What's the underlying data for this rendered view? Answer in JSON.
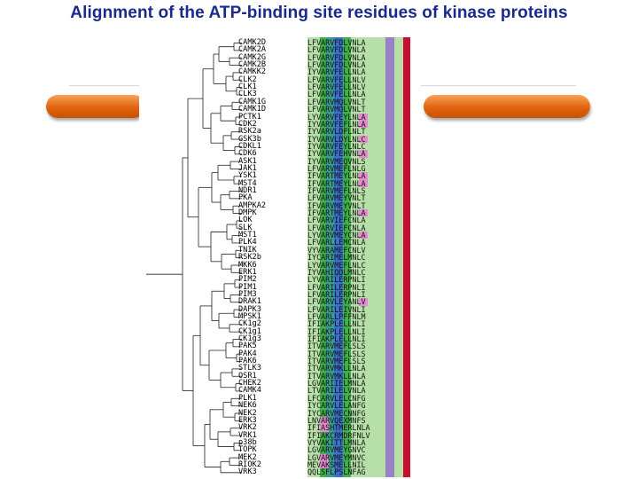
{
  "title": "Alignment of the ATP-binding site residues of kinase proteins",
  "colors": {
    "title": "#1a2a8c",
    "bar": "#e2630e",
    "col_green_light": "#b7e0a8",
    "col_green": "#3fb04a",
    "col_teal": "#3a9e8c",
    "col_blue": "#3b6fd0",
    "col_purple": "#9b7fc8",
    "col_red": "#c8102e",
    "mark_pink": "#e58ad0"
  },
  "rows": [
    {
      "name": "CAMK2D",
      "seq": "LFVARVFDLVNLA"
    },
    {
      "name": "CAMK2A",
      "seq": "LFVARVFDLVNLA"
    },
    {
      "name": "CAMK2G",
      "seq": "LFVARVFDLVNLA"
    },
    {
      "name": "CAMK2B",
      "seq": "LFVARVFDLVNLA"
    },
    {
      "name": "CAMKK2",
      "seq": "IYVARVFELLNLA"
    },
    {
      "name": "CLK2",
      "seq": "LFVARVFELLNLV"
    },
    {
      "name": "CLK1",
      "seq": "LFVARVFELLNLV"
    },
    {
      "name": "CLK3",
      "seq": "LFVARVFELLNLA"
    },
    {
      "name": "CAMK1G",
      "seq": "LFVARVMQLVNLT"
    },
    {
      "name": "CAMK1D",
      "seq": "LFVARVMQLVNLT"
    },
    {
      "name": "PCTK1",
      "seq": "LYVARVFEYLNLA"
    },
    {
      "name": "CDK2",
      "seq": "IYVARVFEFLNLA"
    },
    {
      "name": "RSK2a",
      "seq": "IYVARVLDFLNLT"
    },
    {
      "name": "GSK3b",
      "seq": "IYVARVLDYLNLC"
    },
    {
      "name": "CDKL1",
      "seq": "IYVARVFEYLNLC"
    },
    {
      "name": "CDK6",
      "seq": "IYVARVFEHVNLA"
    },
    {
      "name": "ASK1",
      "seq": "IYVARVMEQVNLS"
    },
    {
      "name": "JAK1",
      "seq": "LFVARVMEFLNLG"
    },
    {
      "name": "YSK1",
      "seq": "IFVARTMEYLNLA"
    },
    {
      "name": "MST4",
      "seq": "IFVARTMEYLNLA"
    },
    {
      "name": "NDR1",
      "seq": "IFVARVMEFLNLS"
    },
    {
      "name": "PKA",
      "seq": "LFVARVMEYVNLT"
    },
    {
      "name": "AMPKA2",
      "seq": "IFVARVMEYVNLT"
    },
    {
      "name": "DMPK",
      "seq": "IFVARTMEYLNLA"
    },
    {
      "name": "LOK",
      "seq": "LFVARVIEFCNLA"
    },
    {
      "name": "SLK",
      "seq": "LFVARVIEFCNLA"
    },
    {
      "name": "MST1",
      "seq": "LYVARVMEYCNLA"
    },
    {
      "name": "PLK4",
      "seq": "LFVARLLEMCNLA"
    },
    {
      "name": "TNIK",
      "seq": "VYVARAMEFCNLV"
    },
    {
      "name": "RSK2b",
      "seq": "IYCARIMELMNLC"
    },
    {
      "name": "MKK6",
      "seq": "LYVARVMEFLNLC"
    },
    {
      "name": "ERK1",
      "seq": "IYVAHIQDLMNLC"
    },
    {
      "name": "PIM2",
      "seq": "LYVARILERPNLI"
    },
    {
      "name": "PIM1",
      "seq": "LFVARILERPNLI"
    },
    {
      "name": "PIM3",
      "seq": "LFVARILERPNLI"
    },
    {
      "name": "DRAK1",
      "seq": "LFVARVLEYANLV"
    },
    {
      "name": "DAPK3",
      "seq": "LFVARILEIVNLI"
    },
    {
      "name": "MPSK1",
      "seq": "LFVARLLPFFNLM"
    },
    {
      "name": "CK1g2",
      "seq": "IFIAKPLELLNLI"
    },
    {
      "name": "CK1g1",
      "seq": "IFIAKPLELLNLI"
    },
    {
      "name": "CK1g3",
      "seq": "IFIAKPLELLNLI"
    },
    {
      "name": "PAK5",
      "seq": "ITVARVMEFLSLS"
    },
    {
      "name": "PAK4",
      "seq": "ITVARVMEFLSLS"
    },
    {
      "name": "PAK6",
      "seq": "ITVARVMEFLSLS"
    },
    {
      "name": "STLK3",
      "seq": "ITVARVMKLLNLA"
    },
    {
      "name": "OSR1",
      "seq": "ITVARVMKLLNLA"
    },
    {
      "name": "CHEK2",
      "seq": "LGVARIIELMNLA"
    },
    {
      "name": "CAMK4",
      "seq": "LTVARILELVNLA"
    },
    {
      "name": "PLK1",
      "seq": "LFCARVLELCNFG"
    },
    {
      "name": "NEK6",
      "seq": "IYCARVLELANFG"
    },
    {
      "name": "NEK2",
      "seq": "IYCARVMECNNFG"
    },
    {
      "name": "ERK3",
      "seq": "LNVARVQEXMNFS"
    },
    {
      "name": "VRK2",
      "seq": "IFIASHTMERLNLA"
    },
    {
      "name": "VRK1",
      "seq": "IFIAKCRMDRFNLV"
    },
    {
      "name": "p38b",
      "seq": "VYVAKITTLMNLA"
    },
    {
      "name": "TOPK",
      "seq": "LGVARVMEYGNVC"
    },
    {
      "name": "MEK2",
      "seq": "LGVARVMEYMNVC"
    },
    {
      "name": "RIOK2",
      "seq": "MEVAKSMELLNIL"
    },
    {
      "name": "VRK3",
      "seq": "QQLSFLPSLNFAG"
    }
  ]
}
